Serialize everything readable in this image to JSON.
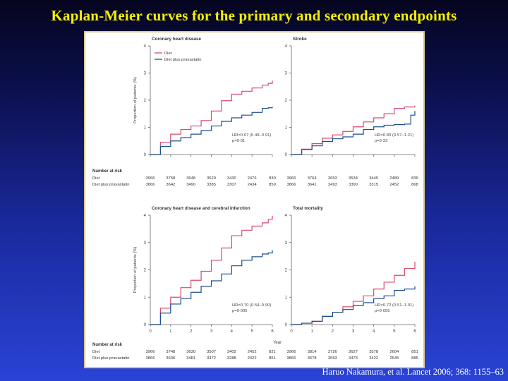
{
  "title": "Kaplan-Meier curves for the primary and secondary endpoints",
  "citation": "Haruo Nakamura, et al. Lancet 2006; 368: 1155–63",
  "colors": {
    "diet": "#d94a6e",
    "pravastatin": "#1b4f8e",
    "title": "#f5f000"
  },
  "chart_data": [
    {
      "type": "line",
      "title": "Coronary heart disease",
      "ylabel": "Proportion of patients (%)",
      "xlabel": "",
      "xlim": [
        0,
        6
      ],
      "ylim": [
        0,
        4
      ],
      "yticks": [
        0,
        1,
        2,
        3,
        4
      ],
      "xticks": [
        0,
        1,
        2,
        3,
        4,
        5,
        6
      ],
      "show_xticks": false,
      "show_legend": true,
      "legend": [
        "Diet",
        "Diet plus pravastatin"
      ],
      "series": [
        {
          "name": "Diet",
          "color": "#d94a6e",
          "x": [
            0,
            0.5,
            1,
            1.5,
            2,
            2.5,
            3,
            3.5,
            4,
            4.5,
            5,
            5.5,
            5.8,
            6
          ],
          "y": [
            0,
            0.45,
            0.75,
            0.92,
            1.05,
            1.25,
            1.6,
            1.98,
            2.22,
            2.33,
            2.45,
            2.55,
            2.62,
            2.72
          ]
        },
        {
          "name": "Diet plus pravastatin",
          "color": "#1b4f8e",
          "x": [
            0,
            0.5,
            1,
            1.5,
            2,
            2.5,
            3,
            3.5,
            4,
            4.5,
            5,
            5.5,
            5.8,
            6
          ],
          "y": [
            0,
            0.3,
            0.5,
            0.62,
            0.75,
            0.88,
            1.05,
            1.22,
            1.35,
            1.45,
            1.55,
            1.7,
            1.72,
            1.75
          ]
        }
      ],
      "annotation": [
        "HR=0·67 (0·49–0·91)",
        "p=0·01"
      ],
      "risk_table": {
        "heading": "Number at risk",
        "rows": [
          {
            "label": "Diet",
            "values": [
              "3966",
              "3758",
              "3648",
              "3529",
              "3430",
              "2476",
              "830"
            ]
          },
          {
            "label": "Diet plus pravastatin",
            "values": [
              "3866",
              "3642",
              "3490",
              "3385",
              "3307",
              "2434",
              "859"
            ]
          }
        ]
      }
    },
    {
      "type": "line",
      "title": "Stroke",
      "ylabel": "",
      "xlabel": "",
      "xlim": [
        0,
        6
      ],
      "ylim": [
        0,
        4
      ],
      "yticks": [
        0,
        1,
        2,
        3,
        4
      ],
      "xticks": [
        0,
        1,
        2,
        3,
        4,
        5,
        6
      ],
      "show_xticks": false,
      "show_legend": false,
      "series": [
        {
          "name": "Diet",
          "color": "#d94a6e",
          "x": [
            0,
            0.5,
            1,
            1.5,
            2,
            2.5,
            3,
            3.5,
            4,
            4.5,
            5,
            5.5,
            6
          ],
          "y": [
            0,
            0.2,
            0.4,
            0.6,
            0.72,
            0.85,
            1.02,
            1.2,
            1.35,
            1.5,
            1.7,
            1.75,
            1.8
          ]
        },
        {
          "name": "Diet plus pravastatin",
          "color": "#1b4f8e",
          "x": [
            0,
            0.5,
            1,
            1.5,
            2,
            2.5,
            3,
            3.5,
            4,
            4.5,
            5,
            5.5,
            5.8,
            6
          ],
          "y": [
            0,
            0.18,
            0.32,
            0.48,
            0.58,
            0.65,
            0.75,
            0.92,
            1.02,
            1.08,
            1.1,
            1.12,
            1.45,
            1.6
          ]
        }
      ],
      "annotation": [
        "HR=0·83 (0·57–1·21)",
        "p=0·33"
      ],
      "risk_table": {
        "heading": "",
        "rows": [
          {
            "label": "",
            "values": [
              "3966",
              "3764",
              "3653",
              "3534",
              "3445",
              "2489",
              "839"
            ]
          },
          {
            "label": "",
            "values": [
              "3866",
              "3641",
              "3493",
              "3390",
              "3315",
              "2452",
              "868"
            ]
          }
        ]
      }
    },
    {
      "type": "line",
      "title": "Coronary heart disease and cerebral infarction",
      "ylabel": "Proportion of patients (%)",
      "xlabel": "",
      "xlim": [
        0,
        6
      ],
      "ylim": [
        0,
        4
      ],
      "yticks": [
        0,
        1,
        2,
        3,
        4
      ],
      "xticks": [
        0,
        1,
        2,
        3,
        4,
        5,
        6
      ],
      "show_xticks": true,
      "show_legend": false,
      "series": [
        {
          "name": "Diet",
          "color": "#d94a6e",
          "x": [
            0,
            0.5,
            1,
            1.5,
            2,
            2.5,
            3,
            3.5,
            4,
            4.5,
            5,
            5.5,
            5.8,
            6
          ],
          "y": [
            0,
            0.6,
            1.0,
            1.35,
            1.62,
            1.95,
            2.35,
            2.8,
            3.25,
            3.45,
            3.6,
            3.72,
            3.85,
            3.98
          ]
        },
        {
          "name": "Diet plus pravastatin",
          "color": "#1b4f8e",
          "x": [
            0,
            0.5,
            1,
            1.5,
            2,
            2.5,
            3,
            3.5,
            4,
            4.5,
            5,
            5.5,
            5.8,
            6
          ],
          "y": [
            0,
            0.42,
            0.75,
            0.95,
            1.18,
            1.4,
            1.6,
            1.85,
            2.15,
            2.35,
            2.48,
            2.58,
            2.62,
            2.72
          ]
        }
      ],
      "annotation": [
        "HR=0·70 (0·54–0·90)",
        "p=0·005"
      ],
      "risk_table": {
        "heading": "Number at risk",
        "rows": [
          {
            "label": "Diet",
            "values": [
              "3966",
              "3748",
              "3630",
              "3507",
              "3402",
              "2452",
              "821"
            ]
          },
          {
            "label": "Diet plus pravastatin",
            "values": [
              "3866",
              "3636",
              "3481",
              "3372",
              "3288",
              "2422",
              "851"
            ]
          }
        ]
      }
    },
    {
      "type": "line",
      "title": "Total mortality",
      "ylabel": "",
      "xlabel": "Year",
      "xlim": [
        0,
        6
      ],
      "ylim": [
        0,
        4
      ],
      "yticks": [
        0,
        1,
        2,
        3,
        4
      ],
      "xticks": [
        0,
        1,
        2,
        3,
        4,
        5,
        6
      ],
      "show_xticks": true,
      "show_legend": false,
      "series": [
        {
          "name": "Diet",
          "color": "#d94a6e",
          "x": [
            0,
            0.5,
            1,
            1.5,
            2,
            2.5,
            3,
            3.5,
            4,
            4.5,
            5,
            5.5,
            6
          ],
          "y": [
            0,
            0.05,
            0.12,
            0.3,
            0.45,
            0.65,
            0.85,
            1.05,
            1.3,
            1.55,
            1.8,
            2.05,
            2.3
          ]
        },
        {
          "name": "Diet plus pravastatin",
          "color": "#1b4f8e",
          "x": [
            0,
            0.5,
            1,
            1.5,
            2,
            2.5,
            3,
            3.5,
            4,
            4.5,
            5,
            5.5,
            6
          ],
          "y": [
            0,
            0.05,
            0.12,
            0.3,
            0.45,
            0.55,
            0.7,
            0.8,
            0.95,
            1.05,
            1.25,
            1.3,
            1.4
          ]
        }
      ],
      "annotation": [
        "HR=0·72 (0·51–1·01)",
        "p=0·055"
      ],
      "risk_table": {
        "heading": "",
        "rows": [
          {
            "label": "",
            "values": [
              "3966",
              "3814",
              "3726",
              "3627",
              "3578",
              "2604",
              "851"
            ]
          },
          {
            "label": "",
            "values": [
              "3866",
              "3678",
              "3553",
              "3473",
              "3422",
              "2545",
              "885"
            ]
          }
        ]
      }
    }
  ]
}
